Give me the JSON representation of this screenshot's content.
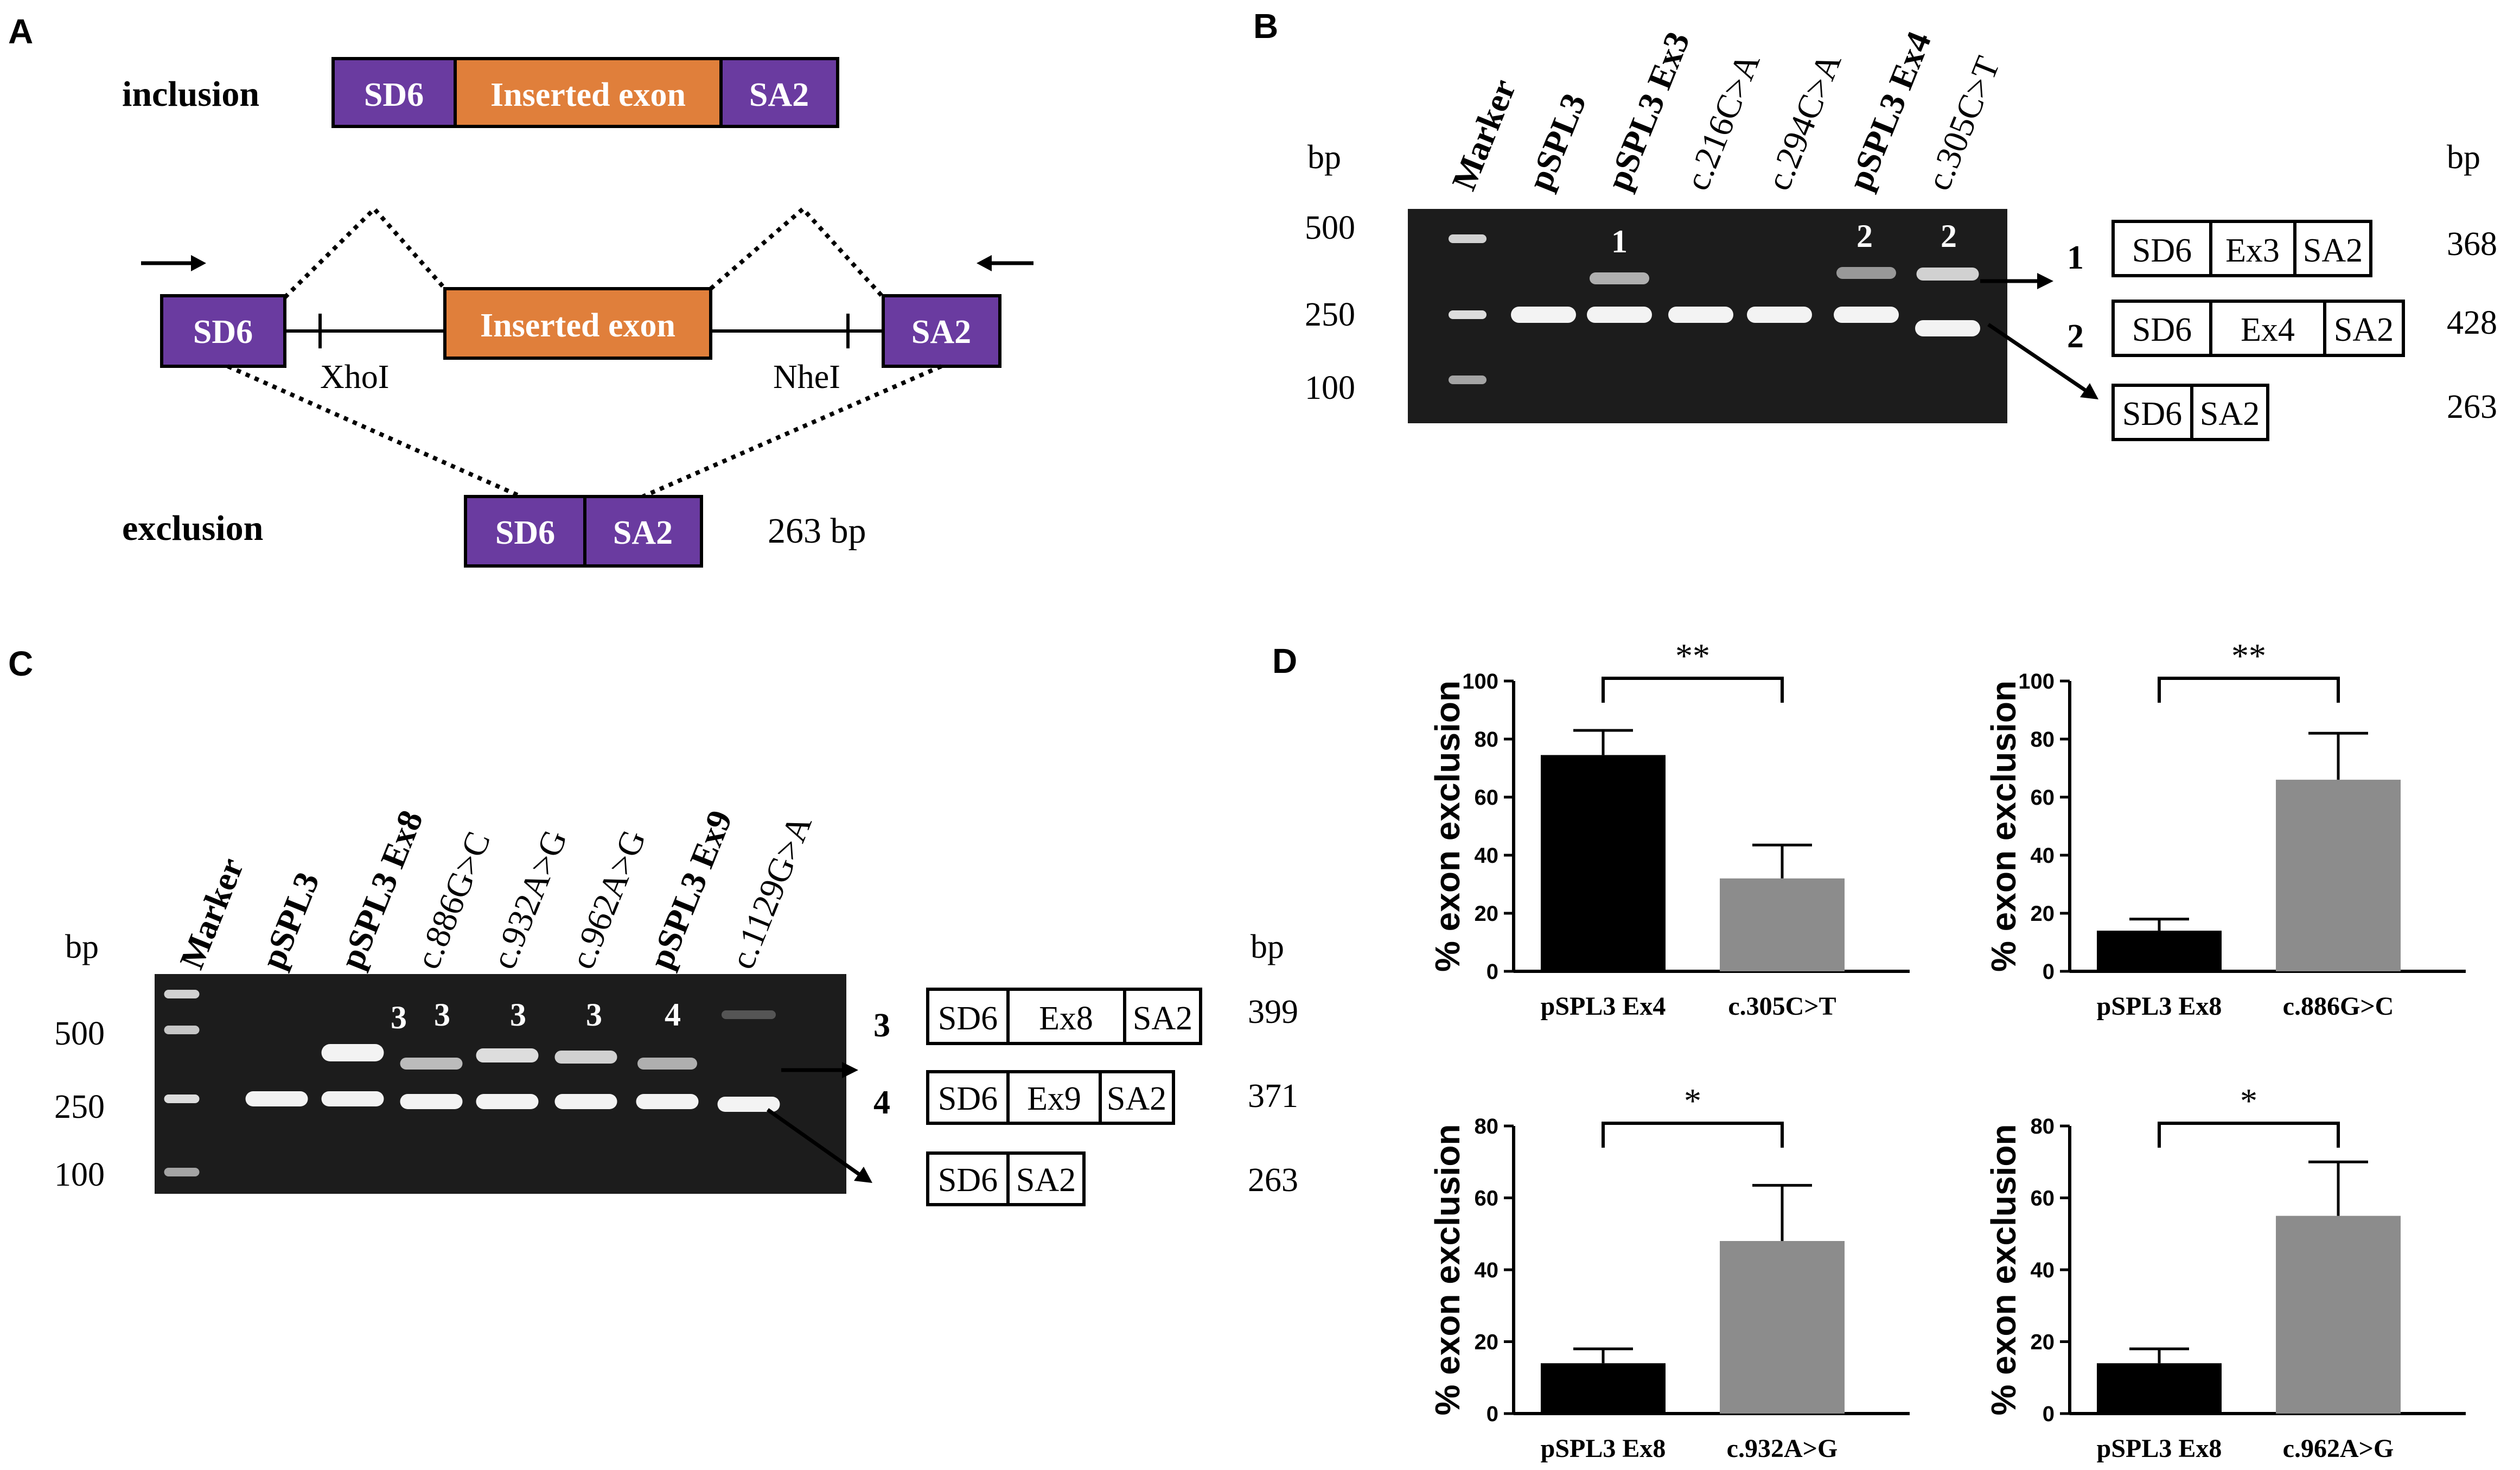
{
  "panels": {
    "a": "A",
    "b": "B",
    "c": "C",
    "d": "D"
  },
  "colors": {
    "purple": "#6a3ba0",
    "orange": "#e07f3b",
    "gel": "#1c1c1c",
    "bar_dark": "#000000",
    "bar_gray": "#8c8c8c"
  },
  "panelA": {
    "inclusion_label": "inclusion",
    "exclusion_label": "exclusion",
    "sd6": "SD6",
    "sa2": "SA2",
    "inserted_exon": "Inserted exon",
    "xhoi": "XhoI",
    "nhei": "NheI",
    "exclusion_size": "263 bp"
  },
  "panelB": {
    "bp_left": "bp",
    "bp_right": "bp",
    "ladder": [
      "500",
      "250",
      "100"
    ],
    "lanes": [
      {
        "label": "Marker",
        "bold": true
      },
      {
        "label": "pSPL3",
        "bold": true
      },
      {
        "label": "pSPL3 Ex3",
        "bold": true
      },
      {
        "label": "c.216C>A",
        "bold": false
      },
      {
        "label": "c.294C>A",
        "bold": false
      },
      {
        "label": "pSPL3 Ex4",
        "bold": true
      },
      {
        "label": "c.305C>T",
        "bold": false
      }
    ],
    "band_numbers": [
      "1",
      "2",
      "2"
    ],
    "legend": [
      {
        "num": "1",
        "parts": [
          "SD6",
          "Ex3",
          "SA2"
        ],
        "size": "368"
      },
      {
        "num": "2",
        "parts": [
          "SD6",
          "Ex4",
          "SA2"
        ],
        "size": "428"
      },
      {
        "num": "",
        "parts": [
          "SD6",
          "SA2"
        ],
        "size": "263"
      }
    ]
  },
  "panelC": {
    "bp_left": "bp",
    "bp_right": "bp",
    "ladder": [
      "500",
      "250",
      "100"
    ],
    "lanes": [
      {
        "label": "Marker",
        "bold": true
      },
      {
        "label": "pSPL3",
        "bold": true
      },
      {
        "label": "pSPL3 Ex8",
        "bold": true
      },
      {
        "label": "c.886G>C",
        "bold": false
      },
      {
        "label": "c.932A>G",
        "bold": false
      },
      {
        "label": "c.962A>G",
        "bold": false
      },
      {
        "label": "pSPL3 Ex9",
        "bold": true
      },
      {
        "label": "c.1129G>A",
        "bold": false
      }
    ],
    "band_numbers": [
      "3",
      "3",
      "3",
      "3",
      "4"
    ],
    "legend": [
      {
        "num": "3",
        "parts": [
          "SD6",
          "Ex8",
          "SA2"
        ],
        "size": "399"
      },
      {
        "num": "4",
        "parts": [
          "SD6",
          "Ex9",
          "SA2"
        ],
        "size": "371"
      },
      {
        "num": "",
        "parts": [
          "SD6",
          "SA2"
        ],
        "size": "263"
      }
    ]
  },
  "chart_data": [
    {
      "type": "bar",
      "ylabel": "% exon exclusion",
      "ylim": [
        0,
        100
      ],
      "yticks": [
        "0",
        "20",
        "40",
        "60",
        "80",
        "100"
      ],
      "categories": [
        "pSPL3 Ex4",
        "c.305C>T"
      ],
      "values": [
        74.5,
        32
      ],
      "errors": [
        8.5,
        11.5
      ],
      "significance": "**"
    },
    {
      "type": "bar",
      "ylabel": "% exon exclusion",
      "ylim": [
        0,
        100
      ],
      "yticks": [
        "0",
        "20",
        "40",
        "60",
        "80",
        "100"
      ],
      "categories": [
        "pSPL3 Ex8",
        "c.886G>C"
      ],
      "values": [
        14,
        66
      ],
      "errors": [
        4,
        16
      ],
      "significance": "**"
    },
    {
      "type": "bar",
      "ylabel": "% exon exclusion",
      "ylim": [
        0,
        80
      ],
      "yticks": [
        "0",
        "20",
        "40",
        "60",
        "80"
      ],
      "categories": [
        "pSPL3 Ex8",
        "c.932A>G"
      ],
      "values": [
        14,
        48
      ],
      "errors": [
        4,
        15.5
      ],
      "significance": "*"
    },
    {
      "type": "bar",
      "ylabel": "% exon exclusion",
      "ylim": [
        0,
        80
      ],
      "yticks": [
        "0",
        "20",
        "40",
        "60",
        "80"
      ],
      "categories": [
        "pSPL3 Ex8",
        "c.962A>G"
      ],
      "values": [
        14,
        55
      ],
      "errors": [
        4,
        15
      ],
      "significance": "*"
    }
  ]
}
